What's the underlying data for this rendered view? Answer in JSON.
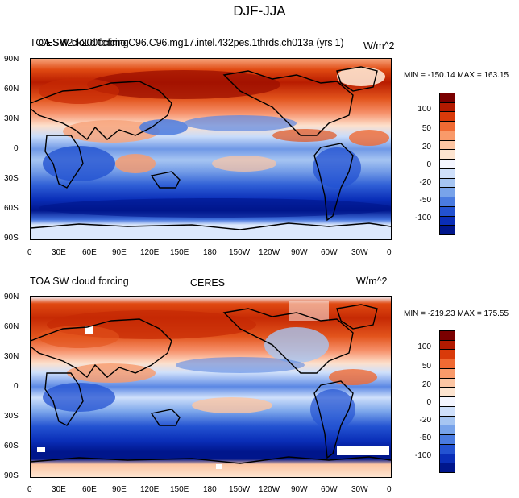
{
  "figure_title": "DJF-JJA",
  "panels": [
    {
      "left_title": "TOA SW cloud forcing",
      "overprinted_title": "CESM2.F2000climo.C96.C96.mg17.intel.432pes.1thrds.ch013a (yrs 1)",
      "units": "W/m^2",
      "min_max": "MIN = -150.14 MAX = 163.15"
    },
    {
      "left_title": "TOA SW cloud forcing",
      "center_title": "CERES",
      "units": "W/m^2",
      "min_max": "MIN = -219.23 MAX = 175.55"
    }
  ],
  "lat_ticks": [
    "90N",
    "60N",
    "30N",
    "0",
    "30S",
    "60S",
    "90S"
  ],
  "lon_ticks": [
    "0",
    "30E",
    "60E",
    "90E",
    "120E",
    "150E",
    "180",
    "150W",
    "120W",
    "90W",
    "60W",
    "30W",
    "0"
  ],
  "colorbar": {
    "labels": [
      "100",
      "50",
      "20",
      "0",
      "-20",
      "-50",
      "-100"
    ],
    "colors": [
      "#7a0000",
      "#b31a00",
      "#d93a0a",
      "#f06a33",
      "#f99a6a",
      "#fcc5a3",
      "#fde4d0",
      "#f4f6ff",
      "#cfe0fb",
      "#a6c5f2",
      "#78a3ea",
      "#4a7be0",
      "#2352d1",
      "#0a2eb8",
      "#00168c"
    ]
  }
}
